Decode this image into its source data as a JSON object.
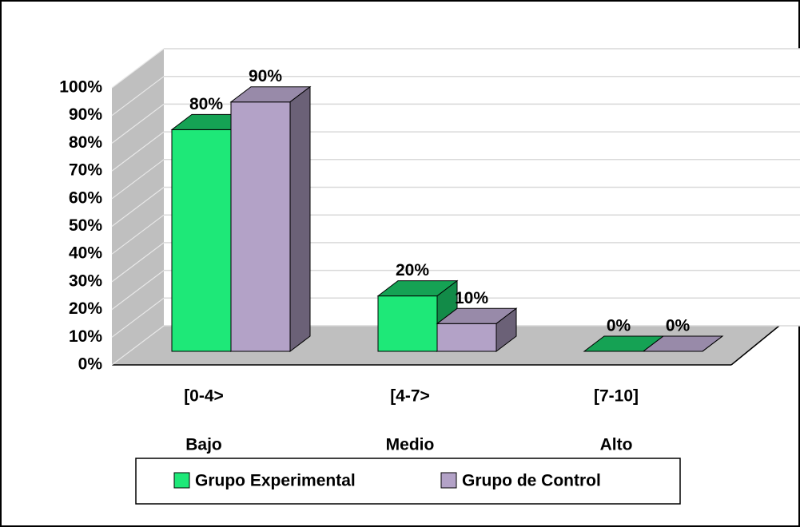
{
  "chart_data": {
    "type": "bar3d",
    "categories": [
      [
        "[0-4>",
        "Bajo"
      ],
      [
        "[4-7>",
        "Medio"
      ],
      [
        "[7-10]",
        "Alto"
      ]
    ],
    "series": [
      {
        "name": "Grupo Experimental",
        "color": "#1ee878",
        "values": [
          80,
          20,
          0
        ],
        "value_labels": [
          "80%",
          "20%",
          "0%"
        ]
      },
      {
        "name": "Grupo de Control",
        "color": "#b3a2c7",
        "values": [
          90,
          10,
          0
        ],
        "value_labels": [
          "90%",
          "10%",
          "0%"
        ]
      }
    ],
    "ylim": [
      0,
      100
    ],
    "yticks": [
      {
        "value": 0,
        "label": "0%"
      },
      {
        "value": 10,
        "label": "10%"
      },
      {
        "value": 20,
        "label": "20%"
      },
      {
        "value": 30,
        "label": "30%"
      },
      {
        "value": 40,
        "label": "40%"
      },
      {
        "value": 50,
        "label": "50%"
      },
      {
        "value": 60,
        "label": "60%"
      },
      {
        "value": 70,
        "label": "70%"
      },
      {
        "value": 80,
        "label": "80%"
      },
      {
        "value": 90,
        "label": "90%"
      },
      {
        "value": 100,
        "label": "100%"
      }
    ],
    "grid": true,
    "legend": "bottom"
  }
}
